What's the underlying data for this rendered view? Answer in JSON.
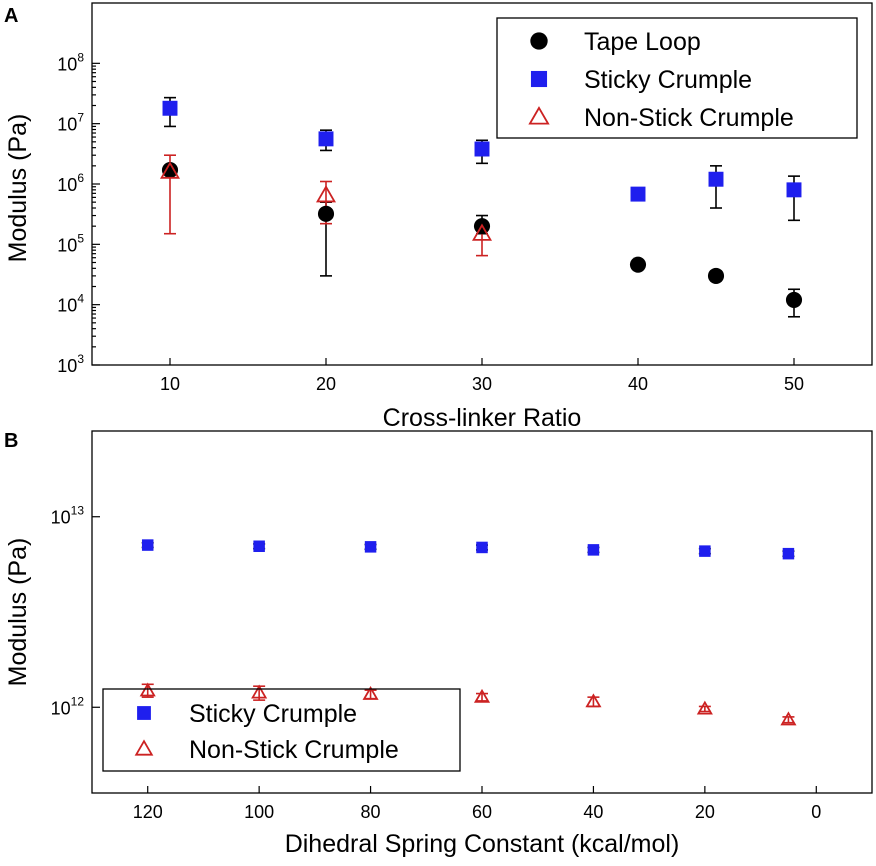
{
  "chart_data": [
    {
      "panel": "A",
      "type": "scatter",
      "xlabel": "Cross-linker Ratio",
      "ylabel": "Modulus (Pa)",
      "xlim": [
        5,
        55
      ],
      "ylim_log10": [
        3,
        9
      ],
      "yscale": "log",
      "x_ticks": [
        10,
        20,
        30,
        40,
        50
      ],
      "y_ticks": [
        {
          "base": "10",
          "exp": "3"
        },
        {
          "base": "10",
          "exp": "4"
        },
        {
          "base": "10",
          "exp": "5"
        },
        {
          "base": "10",
          "exp": "6"
        },
        {
          "base": "10",
          "exp": "7"
        },
        {
          "base": "10",
          "exp": "8"
        }
      ],
      "legend_position": "top-right",
      "series": [
        {
          "name": "Tape Loop",
          "marker": "circle",
          "color": "#000000",
          "points": [
            {
              "x": 10,
              "y": 1700000,
              "lo": 1500000,
              "hi": 1900000
            },
            {
              "x": 20,
              "y": 320000,
              "lo": 30000,
              "hi": 500000
            },
            {
              "x": 30,
              "y": 200000,
              "lo": 150000,
              "hi": 300000
            },
            {
              "x": 40,
              "y": 46000,
              "lo": 42000,
              "hi": 50000
            },
            {
              "x": 45,
              "y": 30000,
              "lo": 25000,
              "hi": 34000
            },
            {
              "x": 50,
              "y": 12000,
              "lo": 6300,
              "hi": 18000
            }
          ]
        },
        {
          "name": "Sticky Crumple",
          "marker": "square",
          "color": "#1f1fee",
          "points": [
            {
              "x": 10,
              "y": 18000000,
              "lo": 9000000,
              "hi": 27000000
            },
            {
              "x": 20,
              "y": 5600000,
              "lo": 3600000,
              "hi": 7800000
            },
            {
              "x": 30,
              "y": 3800000,
              "lo": 2200000,
              "hi": 5300000
            },
            {
              "x": 40,
              "y": 680000,
              "lo": 580000,
              "hi": 800000
            },
            {
              "x": 45,
              "y": 1200000,
              "lo": 400000,
              "hi": 2000000
            },
            {
              "x": 50,
              "y": 800000,
              "lo": 250000,
              "hi": 1350000
            }
          ]
        },
        {
          "name": "Non-Stick Crumple",
          "marker": "triangle-open",
          "color": "#cc2222",
          "points": [
            {
              "x": 10,
              "y": 1600000,
              "lo": 150000,
              "hi": 3000000
            },
            {
              "x": 20,
              "y": 650000,
              "lo": 220000,
              "hi": 1100000
            },
            {
              "x": 30,
              "y": 150000,
              "lo": 65000,
              "hi": 235000
            }
          ]
        }
      ]
    },
    {
      "panel": "B",
      "type": "scatter",
      "xlabel": "Dihedral Spring Constant (kcal/mol)",
      "ylabel": "Modulus (Pa)",
      "xlim": [
        130,
        -10
      ],
      "ylim_log10": [
        11.55,
        13.45
      ],
      "yscale": "log",
      "x_ticks": [
        120,
        100,
        80,
        60,
        40,
        20,
        0
      ],
      "y_ticks": [
        {
          "value_log10": 12,
          "base": "10",
          "exp": "12"
        },
        {
          "value_log10": 13,
          "base": "10",
          "exp": "13"
        }
      ],
      "legend_position": "bottom-left",
      "series": [
        {
          "name": "Sticky Crumple",
          "marker": "square",
          "color": "#1f1fee",
          "points": [
            {
              "x": 120,
              "y": 7100000000000.0,
              "lo": 6900000000000.0,
              "hi": 7300000000000.0
            },
            {
              "x": 100,
              "y": 7000000000000.0,
              "lo": 6800000000000.0,
              "hi": 7200000000000.0
            },
            {
              "x": 80,
              "y": 6950000000000.0,
              "lo": 6750000000000.0,
              "hi": 7150000000000.0
            },
            {
              "x": 60,
              "y": 6900000000000.0,
              "lo": 6700000000000.0,
              "hi": 7100000000000.0
            },
            {
              "x": 40,
              "y": 6700000000000.0,
              "lo": 6500000000000.0,
              "hi": 6900000000000.0
            },
            {
              "x": 20,
              "y": 6600000000000.0,
              "lo": 6400000000000.0,
              "hi": 6800000000000.0
            },
            {
              "x": 5,
              "y": 6400000000000.0,
              "lo": 6200000000000.0,
              "hi": 6600000000000.0
            }
          ]
        },
        {
          "name": "Non-Stick Crumple",
          "marker": "triangle-open",
          "color": "#cc2222",
          "points": [
            {
              "x": 120,
              "y": 1220000000000.0,
              "lo": 1130000000000.0,
              "hi": 1320000000000.0
            },
            {
              "x": 100,
              "y": 1190000000000.0,
              "lo": 1090000000000.0,
              "hi": 1290000000000.0
            },
            {
              "x": 80,
              "y": 1170000000000.0,
              "lo": 1110000000000.0,
              "hi": 1230000000000.0
            },
            {
              "x": 60,
              "y": 1130000000000.0,
              "lo": 1080000000000.0,
              "hi": 1180000000000.0
            },
            {
              "x": 40,
              "y": 1070000000000.0,
              "lo": 1010000000000.0,
              "hi": 1130000000000.0
            },
            {
              "x": 20,
              "y": 980000000000.0,
              "lo": 950000000000.0,
              "hi": 1010000000000.0
            },
            {
              "x": 5,
              "y": 860000000000.0,
              "lo": 830000000000.0,
              "hi": 890000000000.0
            }
          ]
        }
      ]
    }
  ]
}
